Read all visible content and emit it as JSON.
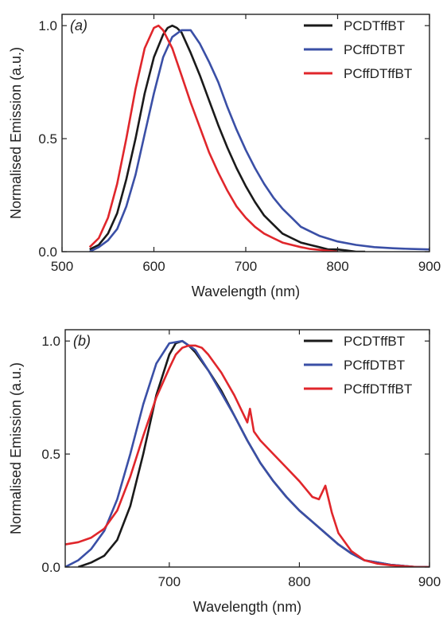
{
  "chart_data": [
    {
      "type": "line",
      "panel_label": "(a)",
      "xlabel": "Wavelength (nm)",
      "ylabel": "Normalised Emission (a.u.)",
      "xlim": [
        500,
        900
      ],
      "ylim": [
        0,
        1.05
      ],
      "xticks": [
        500,
        600,
        700,
        800,
        900
      ],
      "xtick_labels": [
        "500",
        "600",
        "700",
        "800",
        "900"
      ],
      "yticks": [
        0,
        0.5,
        1.0
      ],
      "ytick_labels": [
        "0.0",
        "0.5",
        "1.0"
      ],
      "legend_position": "top-right",
      "series": [
        {
          "name": "PCDTffBT",
          "color": "#1a1a1a",
          "x": [
            530,
            540,
            550,
            560,
            570,
            580,
            590,
            600,
            610,
            615,
            620,
            625,
            630,
            640,
            650,
            660,
            670,
            680,
            690,
            700,
            710,
            720,
            730,
            740,
            750,
            760,
            770,
            780,
            790,
            800,
            810,
            820,
            830
          ],
          "y": [
            0.01,
            0.03,
            0.08,
            0.17,
            0.32,
            0.5,
            0.7,
            0.86,
            0.96,
            0.99,
            1.0,
            0.99,
            0.97,
            0.88,
            0.78,
            0.67,
            0.56,
            0.46,
            0.37,
            0.29,
            0.22,
            0.16,
            0.12,
            0.08,
            0.06,
            0.04,
            0.03,
            0.02,
            0.01,
            0.01,
            0.005,
            0.0,
            0.0
          ]
        },
        {
          "name": "PCffDTBT",
          "color": "#3a4fa6",
          "x": [
            530,
            540,
            550,
            560,
            570,
            580,
            590,
            600,
            610,
            620,
            630,
            640,
            650,
            660,
            670,
            680,
            690,
            700,
            710,
            720,
            730,
            740,
            750,
            760,
            780,
            800,
            820,
            840,
            860,
            880,
            900
          ],
          "y": [
            0.0,
            0.02,
            0.05,
            0.1,
            0.2,
            0.34,
            0.52,
            0.7,
            0.86,
            0.95,
            0.98,
            0.98,
            0.92,
            0.84,
            0.75,
            0.64,
            0.54,
            0.45,
            0.37,
            0.3,
            0.24,
            0.19,
            0.15,
            0.11,
            0.07,
            0.045,
            0.03,
            0.02,
            0.015,
            0.012,
            0.01
          ]
        },
        {
          "name": "PCffDTffBT",
          "color": "#e0262b",
          "x": [
            530,
            540,
            550,
            560,
            570,
            580,
            590,
            600,
            605,
            610,
            620,
            630,
            640,
            650,
            660,
            670,
            680,
            690,
            700,
            710,
            720,
            730,
            740,
            750,
            760,
            770,
            780,
            790,
            800
          ],
          "y": [
            0.02,
            0.06,
            0.15,
            0.3,
            0.5,
            0.72,
            0.9,
            0.99,
            1.0,
            0.98,
            0.9,
            0.78,
            0.66,
            0.55,
            0.44,
            0.35,
            0.27,
            0.2,
            0.15,
            0.11,
            0.08,
            0.06,
            0.04,
            0.03,
            0.02,
            0.012,
            0.008,
            0.004,
            0.0
          ]
        }
      ]
    },
    {
      "type": "line",
      "panel_label": "(b)",
      "xlabel": "Wavelength (nm)",
      "ylabel": "Normalised Emission (a.u.)",
      "xlim": [
        620,
        900
      ],
      "ylim": [
        0,
        1.05
      ],
      "xticks": [
        700,
        800,
        900
      ],
      "xtick_labels": [
        "700",
        "800",
        "900"
      ],
      "yticks": [
        0,
        0.5,
        1.0
      ],
      "ytick_labels": [
        "0.0",
        "0.5",
        "1.0"
      ],
      "legend_position": "top-right",
      "series": [
        {
          "name": "PCDTffBT",
          "color": "#1a1a1a",
          "x": [
            630,
            640,
            650,
            660,
            670,
            680,
            690,
            700,
            705,
            710,
            715,
            720,
            730,
            740,
            750,
            760,
            770,
            780,
            790,
            800,
            810,
            820,
            830,
            840,
            850,
            860,
            870,
            880,
            890,
            900
          ],
          "y": [
            0.0,
            0.02,
            0.05,
            0.12,
            0.27,
            0.5,
            0.76,
            0.94,
            0.99,
            1.0,
            0.98,
            0.95,
            0.87,
            0.78,
            0.67,
            0.56,
            0.46,
            0.38,
            0.31,
            0.25,
            0.2,
            0.15,
            0.1,
            0.06,
            0.03,
            0.02,
            0.01,
            0.005,
            0.0,
            0.0
          ]
        },
        {
          "name": "PCffDTBT",
          "color": "#3a4fa6",
          "x": [
            620,
            630,
            640,
            650,
            660,
            670,
            680,
            690,
            700,
            710,
            720,
            730,
            740,
            750,
            760,
            770,
            780,
            790,
            800,
            810,
            820,
            830,
            840,
            850,
            860,
            870,
            880,
            890,
            900
          ],
          "y": [
            0.0,
            0.03,
            0.08,
            0.16,
            0.3,
            0.5,
            0.72,
            0.9,
            0.99,
            1.0,
            0.96,
            0.87,
            0.77,
            0.67,
            0.56,
            0.46,
            0.38,
            0.31,
            0.25,
            0.2,
            0.15,
            0.1,
            0.06,
            0.03,
            0.02,
            0.01,
            0.005,
            0.0,
            0.0
          ]
        },
        {
          "name": "PCffDTffBT",
          "color": "#e0262b",
          "x": [
            620,
            630,
            640,
            650,
            660,
            670,
            680,
            690,
            700,
            705,
            710,
            715,
            720,
            725,
            730,
            740,
            750,
            760,
            762,
            765,
            770,
            780,
            790,
            800,
            810,
            815,
            820,
            825,
            830,
            840,
            850,
            860,
            870,
            880,
            890,
            900
          ],
          "y": [
            0.1,
            0.11,
            0.13,
            0.17,
            0.25,
            0.4,
            0.58,
            0.75,
            0.88,
            0.94,
            0.97,
            0.98,
            0.98,
            0.97,
            0.94,
            0.86,
            0.76,
            0.64,
            0.7,
            0.6,
            0.56,
            0.5,
            0.44,
            0.38,
            0.31,
            0.3,
            0.36,
            0.24,
            0.15,
            0.07,
            0.03,
            0.015,
            0.008,
            0.004,
            0.0,
            0.0
          ]
        }
      ]
    }
  ]
}
